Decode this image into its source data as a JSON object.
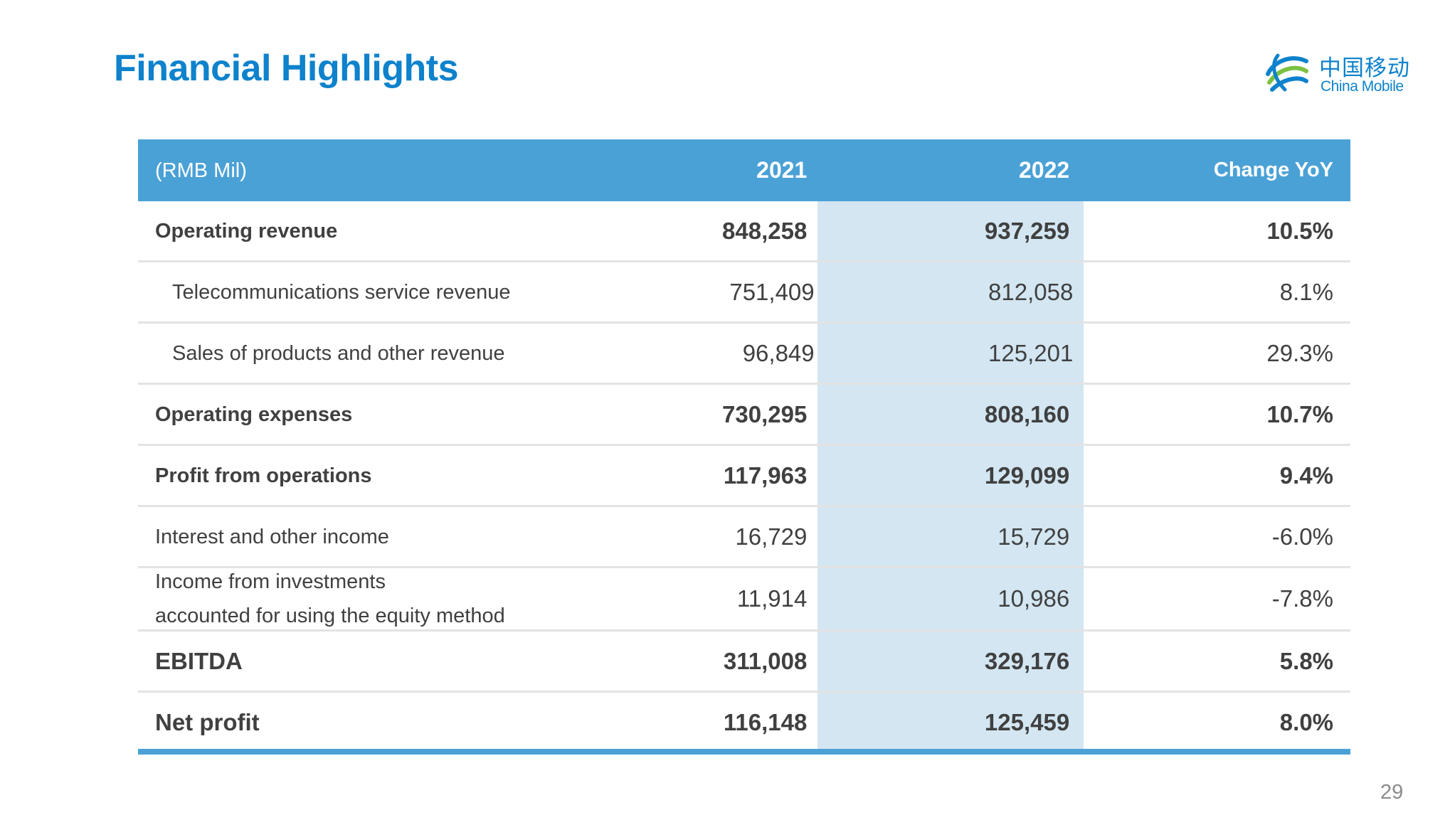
{
  "slide": {
    "title": "Financial Highlights",
    "page_number": "29"
  },
  "logo": {
    "cn_text": "中国移动",
    "en_text": "China Mobile",
    "icon": "china-mobile-swirl-icon",
    "color": "#0e82cc"
  },
  "table": {
    "columns": [
      "(RMB Mil)",
      "2021",
      "2022",
      "Change YoY"
    ],
    "rows": [
      {
        "label": "Operating revenue",
        "y2021": "848,258",
        "y2022": "937,259",
        "change": "10.5%"
      },
      {
        "label": "Telecommunications service revenue",
        "y2021": "751,409",
        "y2022": "812,058",
        "change": "8.1%"
      },
      {
        "label": "Sales of products and other revenue",
        "y2021": "96,849",
        "y2022": "125,201",
        "change": "29.3%"
      },
      {
        "label": "Operating expenses",
        "y2021": "730,295",
        "y2022": "808,160",
        "change": "10.7%"
      },
      {
        "label": "Profit from operations",
        "y2021": "117,963",
        "y2022": "129,099",
        "change": "9.4%"
      },
      {
        "label": "Interest and other income",
        "y2021": "16,729",
        "y2022": "15,729",
        "change": "-6.0%"
      },
      {
        "label_line1": "Income from investments",
        "label_line2": "accounted for using the equity method",
        "y2021": "11,914",
        "y2022": "10,986",
        "change": "-7.8%"
      },
      {
        "label": "EBITDA",
        "y2021": "311,008",
        "y2022": "329,176",
        "change": "5.8%"
      },
      {
        "label": "Net profit",
        "y2021": "116,148",
        "y2022": "125,459",
        "change": "8.0%"
      }
    ]
  },
  "colors": {
    "title": "#0e82cc",
    "header_bg": "#4aa1d6",
    "highlight_column": "#d3e6f2",
    "text": "#404040"
  }
}
